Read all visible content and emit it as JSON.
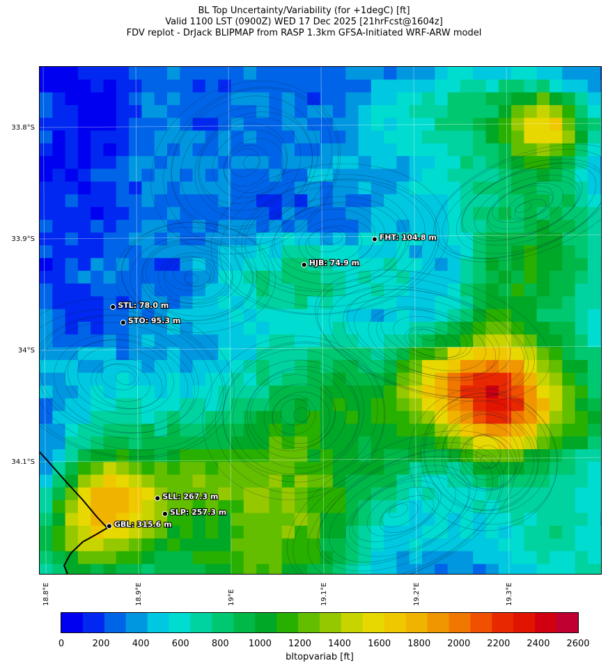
{
  "title": {
    "line1": "BL Top Uncertainty/Variability (for +1degC) [ft]",
    "line2": "Valid 1100 LST (0900Z) WED 17 Dec 2025 [21hrFcst@1604z]",
    "line3": "FDV replot - DrJack BLIPMAP from RASP 1.3km GFSA-Initiated WRF-ARW model"
  },
  "axes": {
    "lat_ticks": [
      "33.8°S",
      "33.9°S",
      "34°S",
      "34.1°S"
    ],
    "lon_ticks": [
      "18.8°E",
      "18.9°E",
      "19°E",
      "19.1°E",
      "19.2°E",
      "19.3°E"
    ]
  },
  "stations": [
    {
      "code": "HJB",
      "label": "HJB: 74.9 m",
      "lon": 19.085,
      "lat": -33.923
    },
    {
      "code": "FHT",
      "label": "FHT: 104.8 m",
      "lon": 19.161,
      "lat": -33.9
    },
    {
      "code": "STL",
      "label": "STL: 78.0 m",
      "lon": 18.879,
      "lat": -33.961
    },
    {
      "code": "STO",
      "label": "STO: 95.3 m",
      "lon": 18.89,
      "lat": -33.975
    },
    {
      "code": "SLL",
      "label": "SLL: 267.3 m",
      "lon": 18.927,
      "lat": -34.133
    },
    {
      "code": "SLP",
      "label": "SLP: 257.3 m",
      "lon": 18.935,
      "lat": -34.147
    },
    {
      "code": "GBL",
      "label": "GBL: 315.6 m",
      "lon": 18.875,
      "lat": -34.158
    }
  ],
  "colorbar": {
    "label": "bltopvariab [ft]",
    "min": 0,
    "max": 2600,
    "ticks": [
      "0",
      "200",
      "400",
      "600",
      "800",
      "1000",
      "1200",
      "1400",
      "1600",
      "1800",
      "2000",
      "2200",
      "2400",
      "2600"
    ],
    "colors": [
      "#0000f0",
      "#0028f0",
      "#0064e8",
      "#0096e0",
      "#00c8e0",
      "#00dcd0",
      "#00d2a0",
      "#00c870",
      "#00b848",
      "#00a828",
      "#28b000",
      "#64be00",
      "#96c800",
      "#c8d400",
      "#e6d800",
      "#f0c800",
      "#f0b400",
      "#f09600",
      "#f07800",
      "#f05000",
      "#e82800",
      "#e01400",
      "#d00010",
      "#c00030"
    ]
  }
}
